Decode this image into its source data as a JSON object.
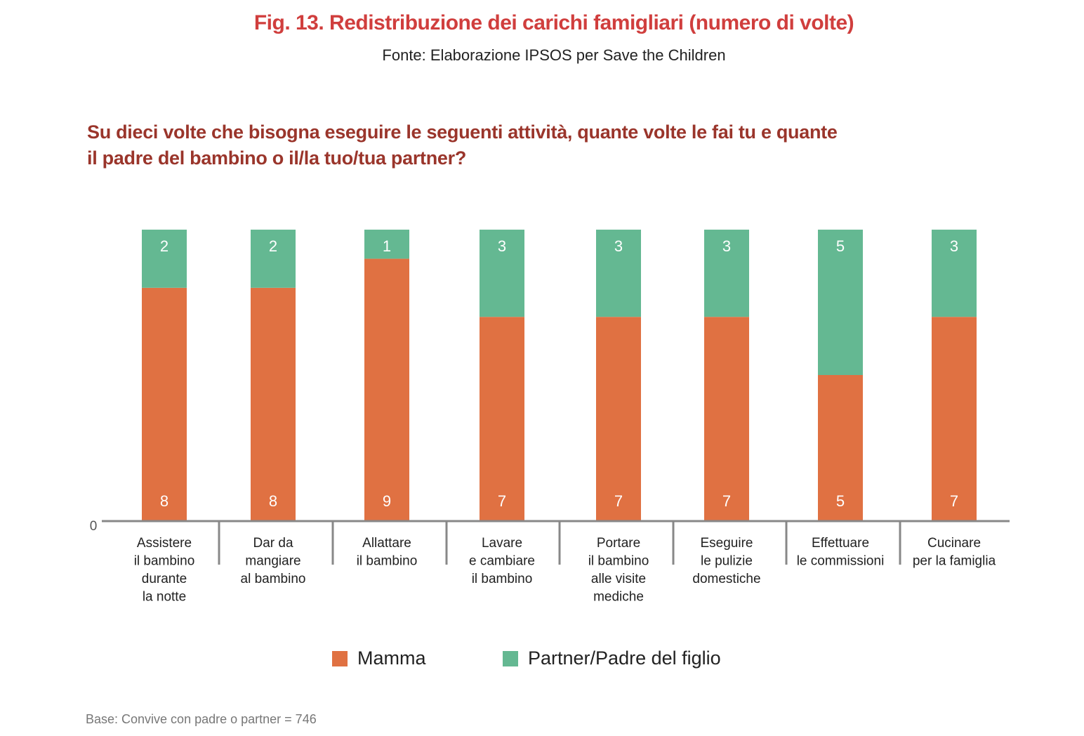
{
  "title": "Fig. 13. Redistribuzione dei carichi famigliari (numero di volte)",
  "subtitle": "Fonte: Elaborazione IPSOS per Save the Children",
  "question_line1": "Su dieci volte che bisogna eseguire le seguenti attività, quante volte le fai tu e quante",
  "question_line2": "il padre del bambino o il/la tuo/tua partner?",
  "base_note": "Base: Convive con padre o partner = 746",
  "colors": {
    "mamma": "#e07142",
    "partner": "#64b892",
    "axis": "#888888"
  },
  "chart_data": {
    "type": "bar",
    "stacked": true,
    "title": "Fig. 13. Redistribuzione dei carichi famigliari (numero di volte)",
    "subtitle": "Fonte: Elaborazione IPSOS per Save the Children",
    "xlabel": "",
    "ylabel": "",
    "ylim": [
      0,
      10
    ],
    "y_ticks": [
      "0"
    ],
    "grid": false,
    "legend_position": "bottom",
    "categories": [
      [
        "Assistere",
        "il bambino",
        "durante",
        "la notte"
      ],
      [
        "Dar da",
        "mangiare",
        "al bambino"
      ],
      [
        "Allattare",
        "il bambino"
      ],
      [
        "Lavare",
        "e cambiare",
        "il bambino"
      ],
      [
        "Portare",
        "il bambino",
        "alle visite",
        "mediche"
      ],
      [
        "Eseguire",
        "le pulizie",
        "domestiche"
      ],
      [
        "Effettuare",
        "le commissioni"
      ],
      [
        "Cucinare",
        "per la famiglia"
      ]
    ],
    "series": [
      {
        "name": "Mamma",
        "color": "#e07142",
        "values": [
          8,
          8,
          9,
          7,
          7,
          7,
          5,
          7
        ]
      },
      {
        "name": "Partner/Padre del figlio",
        "color": "#64b892",
        "values": [
          2,
          2,
          1,
          3,
          3,
          3,
          5,
          3
        ]
      }
    ]
  }
}
